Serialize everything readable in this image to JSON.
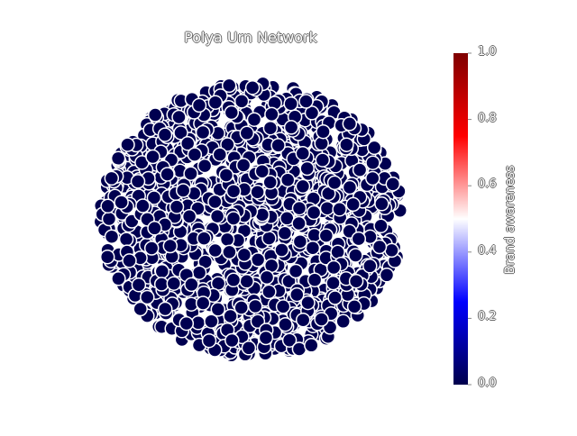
{
  "chart_data": {
    "type": "scatter",
    "title": "Polya Urn Network",
    "xlabel": "",
    "ylabel": "",
    "grid": false,
    "node_color_value": 0.0,
    "node_fill": "#000050",
    "node_edge": "#ffffff",
    "node_count_estimate": 1500,
    "colorbar": {
      "label": "Brand awareness",
      "range": [
        0.0,
        1.0
      ],
      "ticks": [
        "0.0",
        "0.2",
        "0.4",
        "0.6",
        "0.8",
        "1.0"
      ],
      "colormap": "seismic",
      "colors": [
        "#00004c",
        "#0000ff",
        "#ffffff",
        "#ff0000",
        "#7f0000"
      ],
      "placement": "right"
    }
  }
}
